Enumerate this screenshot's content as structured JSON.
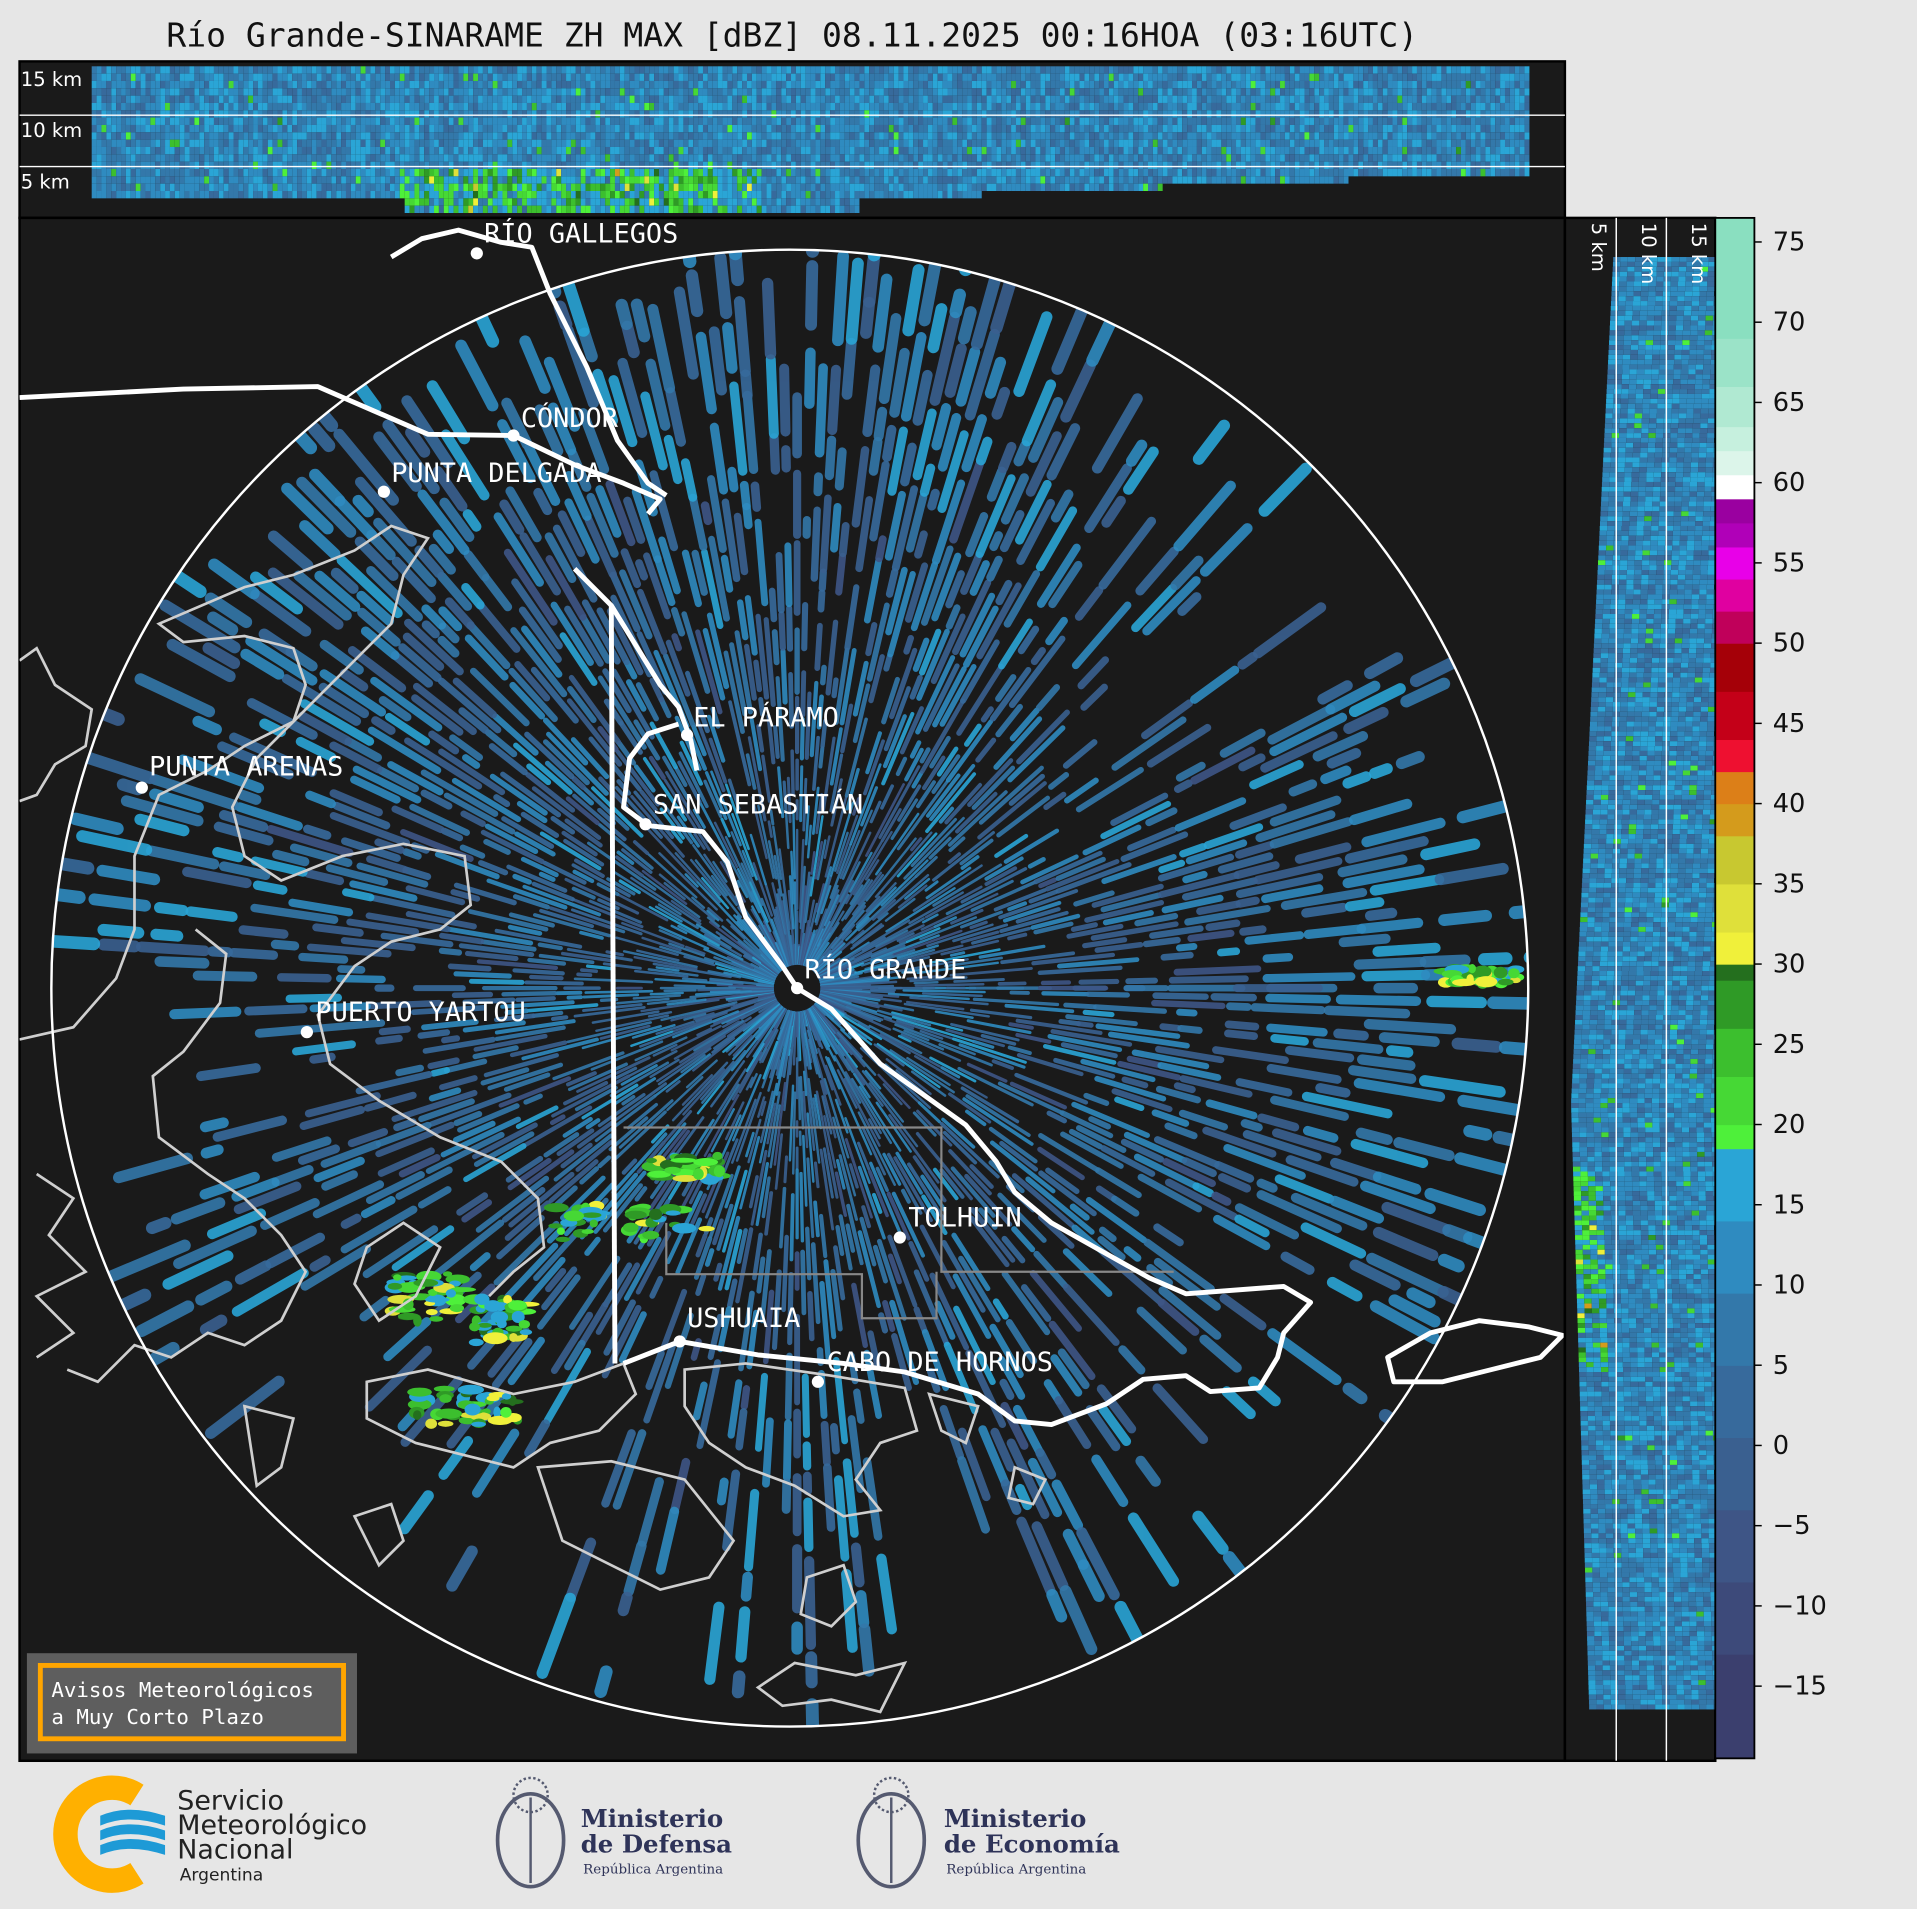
{
  "title": "Río Grande-SINARAME ZH MAX [dBZ] 08.11.2025 00:16HOA (03:16UTC)",
  "top_panel": {
    "labels": [
      "15 km",
      "10 km",
      "5 km"
    ]
  },
  "side_panel": {
    "labels": [
      "5 km",
      "10 km",
      "15 km"
    ]
  },
  "colorbar": {
    "unit": "dBZ",
    "ticks": [
      "75",
      "70",
      "65",
      "60",
      "55",
      "50",
      "45",
      "40",
      "35",
      "30",
      "25",
      "20",
      "15",
      "10",
      "5",
      "0",
      "−5",
      "−10",
      "−15"
    ],
    "tick_values": [
      75,
      70,
      65,
      60,
      55,
      50,
      45,
      40,
      35,
      30,
      25,
      20,
      15,
      10,
      5,
      0,
      -5,
      -10,
      -15
    ],
    "range": [
      -19.5,
      76.5
    ],
    "colors": [
      [
        -19.5,
        "#3b3f6e"
      ],
      [
        -13,
        "#3d4a7a"
      ],
      [
        -8.5,
        "#3e5586"
      ],
      [
        -4,
        "#3a6090"
      ],
      [
        0.5,
        "#376a9c"
      ],
      [
        5,
        "#3378aa"
      ],
      [
        9.5,
        "#2f8bc0"
      ],
      [
        14,
        "#2aa5d6"
      ],
      [
        18.5,
        "#4ef03a"
      ],
      [
        20,
        "#46d835"
      ],
      [
        23,
        "#3cbf2e"
      ],
      [
        26,
        "#2f9a26"
      ],
      [
        29,
        "#246f1e"
      ],
      [
        30,
        "#f0f03a"
      ],
      [
        32,
        "#dfe03a"
      ],
      [
        35,
        "#c8c830"
      ],
      [
        38,
        "#d49b1c"
      ],
      [
        40,
        "#dc7f18"
      ],
      [
        42,
        "#ee1030"
      ],
      [
        44,
        "#c40018"
      ],
      [
        47,
        "#a50008"
      ],
      [
        50,
        "#c0005a"
      ],
      [
        52,
        "#e000a0"
      ],
      [
        54,
        "#e800e8"
      ],
      [
        56,
        "#b000b8"
      ],
      [
        57.5,
        "#9a00a0"
      ],
      [
        59,
        "#ffffff"
      ],
      [
        60.5,
        "#dcf5ea"
      ],
      [
        62,
        "#c6f0de"
      ],
      [
        63.5,
        "#b0e9d2"
      ],
      [
        66,
        "#9be3c8"
      ],
      [
        69,
        "#8adfc0"
      ]
    ]
  },
  "cities": [
    {
      "name": "RÍO GALLEGOS"
    },
    {
      "name": "CÓNDOR"
    },
    {
      "name": "PUNTA DELGADA"
    },
    {
      "name": "EL PÁRAMO"
    },
    {
      "name": "PUNTA ARENAS"
    },
    {
      "name": "SAN SEBASTIÁN"
    },
    {
      "name": "RÍO GRANDE"
    },
    {
      "name": "PUERTO YARTOU"
    },
    {
      "name": "TOLHUIN"
    },
    {
      "name": "USHUAIA"
    },
    {
      "name": "CABO DE HORNOS"
    }
  ],
  "warning_button": {
    "line1": "Avisos Meteorológicos",
    "line2": "a Muy Corto Plazo",
    "border_color": "#ffa500"
  },
  "logos": {
    "smn": {
      "line1": "Servicio",
      "line2": "Meteorológico",
      "line3": "Nacional",
      "line4": "Argentina",
      "orange": "#ffb000",
      "blue": "#1e9ad6"
    },
    "defensa": {
      "line1": "Ministerio",
      "line2": "de Defensa",
      "line3": "República Argentina"
    },
    "economia": {
      "line1": "Ministerio",
      "line2": "de Economía",
      "line3": "República Argentina"
    }
  }
}
